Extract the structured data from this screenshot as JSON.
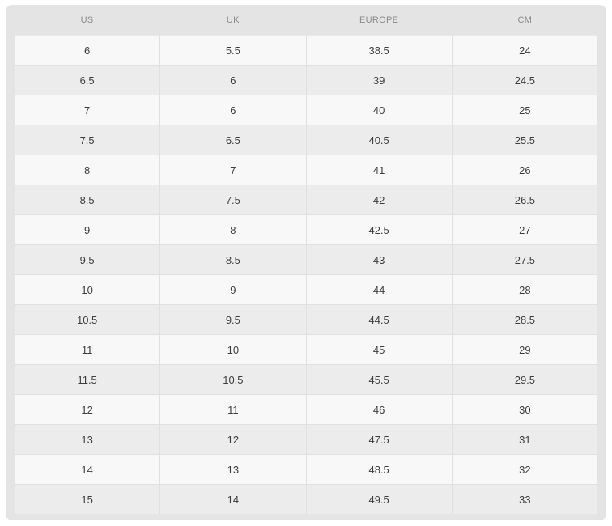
{
  "colors": {
    "page_background": "#ffffff",
    "panel_background": "#e4e4e4",
    "row_background": "#f8f8f8",
    "row_alt_background": "#ececec",
    "row_border": "#e0e0e0",
    "header_text": "#898989",
    "cell_text": "#3d3d3d"
  },
  "table": {
    "columns": [
      "US",
      "UK",
      "EUROPE",
      "CM"
    ],
    "rows": [
      [
        "6",
        "5.5",
        "38.5",
        "24"
      ],
      [
        "6.5",
        "6",
        "39",
        "24.5"
      ],
      [
        "7",
        "6",
        "40",
        "25"
      ],
      [
        "7.5",
        "6.5",
        "40.5",
        "25.5"
      ],
      [
        "8",
        "7",
        "41",
        "26"
      ],
      [
        "8.5",
        "7.5",
        "42",
        "26.5"
      ],
      [
        "9",
        "8",
        "42.5",
        "27"
      ],
      [
        "9.5",
        "8.5",
        "43",
        "27.5"
      ],
      [
        "10",
        "9",
        "44",
        "28"
      ],
      [
        "10.5",
        "9.5",
        "44.5",
        "28.5"
      ],
      [
        "11",
        "10",
        "45",
        "29"
      ],
      [
        "11.5",
        "10.5",
        "45.5",
        "29.5"
      ],
      [
        "12",
        "11",
        "46",
        "30"
      ],
      [
        "13",
        "12",
        "47.5",
        "31"
      ],
      [
        "14",
        "13",
        "48.5",
        "32"
      ],
      [
        "15",
        "14",
        "49.5",
        "33"
      ]
    ]
  }
}
